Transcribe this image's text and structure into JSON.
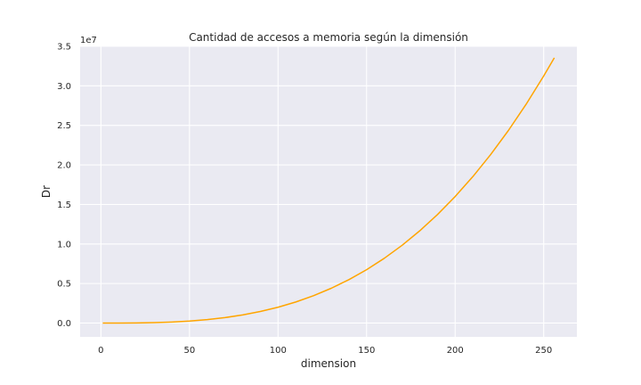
{
  "chart_data": {
    "type": "line",
    "title": "Cantidad de accesos a memoria según la dimensión",
    "xlabel": "dimension",
    "ylabel": "Dr",
    "y_offset_label": "1e7",
    "xlim": [
      -11.75,
      268.75
    ],
    "ylim": [
      -1750000,
      35000000
    ],
    "x_ticks": [
      0,
      50,
      100,
      150,
      200,
      250
    ],
    "x_tick_labels": [
      "0",
      "50",
      "100",
      "150",
      "200",
      "250"
    ],
    "y_ticks": [
      0,
      5000000,
      10000000,
      15000000,
      20000000,
      25000000,
      30000000,
      35000000
    ],
    "y_tick_labels": [
      "0.0",
      "0.5",
      "1.0",
      "1.5",
      "2.0",
      "2.5",
      "3.0",
      "3.5"
    ],
    "grid": true,
    "series": [
      {
        "color": "#ffa500",
        "x": [
          1,
          10,
          20,
          30,
          40,
          50,
          60,
          70,
          80,
          90,
          100,
          110,
          120,
          130,
          140,
          150,
          160,
          170,
          180,
          190,
          200,
          210,
          220,
          230,
          240,
          250,
          256
        ],
        "y": [
          2,
          2000,
          16000,
          54000,
          128000,
          250000,
          432000,
          686000,
          1024000,
          1458000,
          2000000,
          2662000,
          3456000,
          4394000,
          5488000,
          6750000,
          8192000,
          9826000,
          11664000,
          13718000,
          16000000,
          18522000,
          21296000,
          24334000,
          27648000,
          31250000,
          33554432
        ]
      }
    ]
  }
}
